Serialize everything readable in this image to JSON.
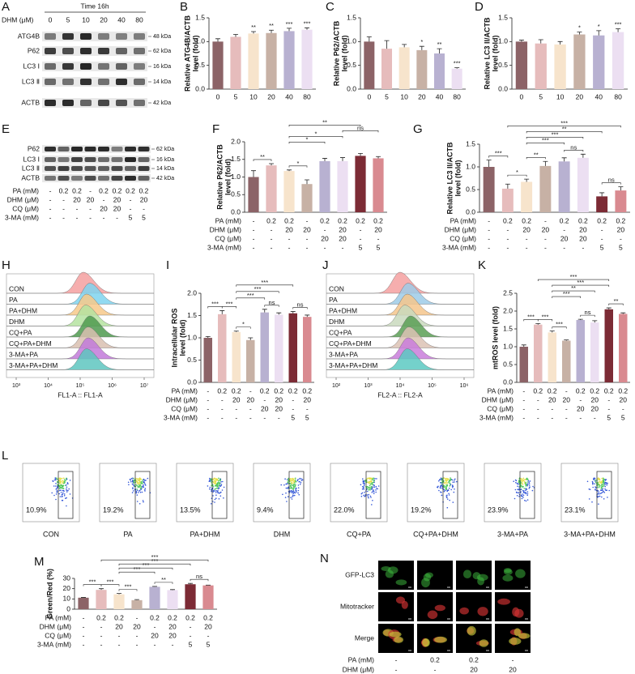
{
  "treatments": {
    "rows": [
      {
        "label": "PA (mM)",
        "values": [
          "-",
          "0.2",
          "0.2",
          "-",
          "0.2",
          "0.2",
          "0.2",
          "0.2"
        ]
      },
      {
        "label": "DHM (μM)",
        "values": [
          "-",
          "-",
          "20",
          "20",
          "-",
          "20",
          "-",
          "20"
        ]
      },
      {
        "label": "CQ (μM)",
        "values": [
          "-",
          "-",
          "-",
          "-",
          "20",
          "20",
          "-",
          "-"
        ]
      },
      {
        "label": "3-MA (mM)",
        "values": [
          "-",
          "-",
          "-",
          "-",
          "-",
          "-",
          "5",
          "5"
        ]
      }
    ]
  },
  "blot_a": {
    "panel": "A",
    "title": "Time 16h",
    "dose_label": "DHM (μM)",
    "doses": [
      "0",
      "5",
      "10",
      "20",
      "40",
      "80"
    ],
    "rows": [
      {
        "label": "ATG4B",
        "size": "48 kDa"
      },
      {
        "label": "P62",
        "size": "62 kDa"
      },
      {
        "label": "LC3 Ⅰ",
        "size": "16 kDa"
      },
      {
        "label": "LC3 Ⅱ",
        "size": "14 kDa"
      },
      {
        "label": "ACTB",
        "size": "42 kDa"
      }
    ]
  },
  "blot_e": {
    "panel": "E",
    "rows": [
      {
        "label": "P62",
        "size": "62 kDa"
      },
      {
        "label": "LC3 Ⅰ",
        "size": "16 kDa"
      },
      {
        "label": "LC3 Ⅱ",
        "size": "14 kDa"
      },
      {
        "label": "ACTB",
        "size": "42 kDa"
      }
    ]
  },
  "flow_h": {
    "panel": "H",
    "xlabel": "FL1-A :: FL1-A",
    "xtick_labels": [
      "10³",
      "10⁴",
      "10⁵",
      "10⁶",
      "10⁷"
    ],
    "samples": [
      {
        "label": "CON",
        "color": "#f4a0a0"
      },
      {
        "label": "PA",
        "color": "#7fd3ee"
      },
      {
        "label": "PA+DHM",
        "color": "#f7c98a"
      },
      {
        "label": "DHM",
        "color": "#b5e3a0"
      },
      {
        "label": "CQ+PA",
        "color": "#4f9a4f"
      },
      {
        "label": "CQ+PA+DHM",
        "color": "#d9c0b0"
      },
      {
        "label": "3-MA+PA",
        "color": "#c27ad9"
      },
      {
        "label": "3-MA+PA+DHM",
        "color": "#5ec6c0"
      }
    ]
  },
  "flow_j": {
    "panel": "J",
    "xlabel": "FL2-A :: FL2-A",
    "xtick_labels": [
      "10²",
      "10³",
      "10⁴",
      "10⁵",
      "10⁶"
    ],
    "samples": [
      {
        "label": "CON",
        "color": "#f4a0a0"
      },
      {
        "label": "PA",
        "color": "#9ecbe8"
      },
      {
        "label": "PA+DHM",
        "color": "#f5c58c"
      },
      {
        "label": "DHM",
        "color": "#c9d9bd"
      },
      {
        "label": "CQ+PA",
        "color": "#5a9f55"
      },
      {
        "label": "CQ+PA+DHM",
        "color": "#dcc2b4"
      },
      {
        "label": "3-MA+PA",
        "color": "#c97ddb"
      },
      {
        "label": "3-MA+PA+DHM",
        "color": "#5cc9c2"
      }
    ]
  },
  "scatter_l": {
    "panel": "L",
    "plots": [
      {
        "label": "CON",
        "percent": "10.9%"
      },
      {
        "label": "PA",
        "percent": "19.2%"
      },
      {
        "label": "PA+DHM",
        "percent": "13.5%"
      },
      {
        "label": "DHM",
        "percent": "9.4%"
      },
      {
        "label": "CQ+PA",
        "percent": "22.0%"
      },
      {
        "label": "CQ+PA+DHM",
        "percent": "19.2%"
      },
      {
        "label": "3-MA+PA",
        "percent": "23.9%"
      },
      {
        "label": "3-MA+PA+DHM",
        "percent": "23.1%"
      }
    ]
  },
  "images_n": {
    "panel": "N",
    "channels": [
      "GFP-LC3",
      "Mitotracker",
      "Merge"
    ],
    "rows": [
      {
        "label": "PA (mM)",
        "values": [
          "-",
          "0.2",
          "0.2",
          "-"
        ]
      },
      {
        "label": "DHM (μM)",
        "values": [
          "-",
          "-",
          "20",
          "20"
        ]
      }
    ]
  },
  "chart_data": [
    {
      "type": "bar",
      "panel": "B",
      "ylabel": [
        "Relative ATG4B/ACTB",
        "level (fold)"
      ],
      "categories": [
        "0",
        "5",
        "10",
        "20",
        "40",
        "80"
      ],
      "values": [
        1.0,
        1.1,
        1.17,
        1.18,
        1.22,
        1.25
      ],
      "error": [
        0.06,
        0.05,
        0.04,
        0.06,
        0.06,
        0.04
      ],
      "labels": [
        null,
        null,
        "**",
        "**",
        "***",
        "***"
      ],
      "colors": [
        "#8c6367",
        "#e6bcbc",
        "#f7e4cc",
        "#c7b1a5",
        "#b8b1d1",
        "#ecdff2"
      ],
      "ylim": [
        0,
        1.5
      ],
      "yticks": [
        {
          "value": 0,
          "label": "0.0"
        },
        0.5,
        {
          "value": 1,
          "label": "1.0"
        },
        1.5
      ]
    },
    {
      "type": "bar",
      "panel": "C",
      "ylabel": [
        "Relative P62/ACTB",
        "level (fold)"
      ],
      "categories": [
        "0",
        "5",
        "10",
        "20",
        "40",
        "80"
      ],
      "values": [
        1.0,
        0.85,
        0.88,
        0.82,
        0.75,
        0.43
      ],
      "error": [
        0.1,
        0.17,
        0.06,
        0.08,
        0.1,
        0.02
      ],
      "labels": [
        null,
        null,
        null,
        "*",
        "**",
        "***"
      ],
      "colors": [
        "#8c6367",
        "#e6bcbc",
        "#f7e4cc",
        "#c7b1a5",
        "#b8b1d1",
        "#ecdff2"
      ],
      "ylim": [
        0,
        1.5
      ],
      "yticks": [
        {
          "value": 0,
          "label": "0.0"
        },
        0.5,
        {
          "value": 1,
          "label": "1.0"
        },
        1.5
      ]
    },
    {
      "type": "bar",
      "panel": "D",
      "ylabel": [
        "Relative LC3 II/ACTB",
        "level (fold)"
      ],
      "categories": [
        "0",
        "5",
        "10",
        "20",
        "40",
        "80"
      ],
      "values": [
        1.0,
        0.96,
        0.94,
        1.15,
        1.13,
        1.2
      ],
      "error": [
        0.03,
        0.08,
        0.06,
        0.05,
        0.1,
        0.07
      ],
      "labels": [
        null,
        null,
        null,
        "*",
        "*",
        "***"
      ],
      "colors": [
        "#8c6367",
        "#e6bcbc",
        "#f7e4cc",
        "#c7b1a5",
        "#b8b1d1",
        "#ecdff2"
      ],
      "ylim": [
        0,
        1.5
      ],
      "yticks": [
        {
          "value": 0,
          "label": "0.0"
        },
        0.5,
        {
          "value": 1,
          "label": "1.0"
        },
        1.5
      ]
    },
    {
      "type": "bar",
      "panel": "F",
      "ylabel": [
        "Relative P62/ACTB",
        "level (fold)"
      ],
      "values": [
        1.0,
        1.33,
        1.17,
        0.8,
        1.45,
        1.45,
        1.6,
        1.53
      ],
      "error": [
        0.18,
        0.05,
        0.03,
        0.12,
        0.08,
        0.1,
        0.07,
        0.05
      ],
      "colors": [
        "#8c6367",
        "#e6bcbc",
        "#f7e4cc",
        "#c7b1a5",
        "#b8b1d1",
        "#ecdff2",
        "#7c2b35",
        "#d98a90"
      ],
      "ylim": [
        0,
        2
      ],
      "yticks": [
        {
          "value": 0,
          "label": "0.0"
        },
        0.5,
        {
          "value": 1,
          "label": "1.0"
        },
        1.5,
        {
          "value": 2,
          "label": "2.0"
        }
      ],
      "brackets": [
        {
          "pair": [
            0,
            1
          ],
          "label": "**"
        },
        {
          "pair": [
            2,
            3
          ],
          "label": "*"
        },
        {
          "pair": [
            2,
            4
          ],
          "label": "*"
        },
        {
          "pair": [
            2,
            5
          ],
          "label": "*"
        },
        {
          "pair": [
            5,
            7
          ],
          "label": "ns"
        },
        {
          "pair": [
            2,
            6
          ],
          "label": "**"
        }
      ]
    },
    {
      "type": "bar",
      "panel": "G",
      "ylabel": [
        "Relative LC3 II/ACTB",
        "level (fold)"
      ],
      "values": [
        1.0,
        0.52,
        0.67,
        1.02,
        1.12,
        1.2,
        0.35,
        0.48
      ],
      "error": [
        0.15,
        0.1,
        0.06,
        0.1,
        0.08,
        0.08,
        0.08,
        0.08
      ],
      "colors": [
        "#8c6367",
        "#e6bcbc",
        "#f7e4cc",
        "#c7b1a5",
        "#b8b1d1",
        "#ecdff2",
        "#7c2b35",
        "#d98a90"
      ],
      "ylim": [
        0,
        1.5
      ],
      "yticks": [
        {
          "value": 0,
          "label": "0.0"
        },
        0.5,
        {
          "value": 1,
          "label": "1.0"
        },
        1.5
      ],
      "brackets": [
        {
          "pair": [
            0,
            1
          ],
          "label": "***"
        },
        {
          "pair": [
            1,
            2
          ],
          "label": "*"
        },
        {
          "pair": [
            2,
            3
          ],
          "label": "**"
        },
        {
          "pair": [
            4,
            5
          ],
          "label": "ns"
        },
        {
          "pair": [
            6,
            7
          ],
          "label": "ns"
        },
        {
          "pair": [
            2,
            4
          ],
          "label": "***"
        },
        {
          "pair": [
            2,
            5
          ],
          "label": "***"
        },
        {
          "pair": [
            2,
            6
          ],
          "label": "**"
        },
        {
          "pair": [
            1,
            7
          ],
          "label": "***"
        }
      ]
    },
    {
      "type": "bar",
      "panel": "I",
      "ylabel": [
        "Intracellular ROS",
        "level (fold)"
      ],
      "values": [
        1.0,
        1.53,
        1.13,
        0.95,
        1.57,
        1.52,
        1.55,
        1.47
      ],
      "error": [
        0.03,
        0.08,
        0.02,
        0.05,
        0.07,
        0.04,
        0.04,
        0.04
      ],
      "colors": [
        "#8c6367",
        "#e6bcbc",
        "#f7e4cc",
        "#c7b1a5",
        "#b8b1d1",
        "#ecdff2",
        "#7c2b35",
        "#d98a90"
      ],
      "ylim": [
        0,
        2
      ],
      "yticks": [
        {
          "value": 0,
          "label": "0.0"
        },
        0.5,
        {
          "value": 1,
          "label": "1.0"
        },
        1.5,
        {
          "value": 2,
          "label": "2.0"
        }
      ],
      "brackets": [
        {
          "pair": [
            0,
            1
          ],
          "label": "***"
        },
        {
          "pair": [
            1,
            2
          ],
          "label": "***"
        },
        {
          "pair": [
            2,
            3
          ],
          "label": "*"
        },
        {
          "pair": [
            4,
            5
          ],
          "label": "ns"
        },
        {
          "pair": [
            6,
            7
          ],
          "label": "ns"
        },
        {
          "pair": [
            2,
            4
          ],
          "label": "***"
        },
        {
          "pair": [
            2,
            5
          ],
          "label": "***"
        },
        {
          "pair": [
            2,
            6
          ],
          "label": "***"
        }
      ]
    },
    {
      "type": "bar",
      "panel": "K",
      "ylabel": [
        "mtROS level (fold)"
      ],
      "values": [
        1.0,
        1.62,
        1.4,
        1.17,
        1.75,
        1.68,
        2.05,
        1.92
      ],
      "error": [
        0.05,
        0.03,
        0.04,
        0.02,
        0.02,
        0.05,
        0.04,
        0.03
      ],
      "colors": [
        "#8c6367",
        "#e6bcbc",
        "#f7e4cc",
        "#c7b1a5",
        "#b8b1d1",
        "#ecdff2",
        "#7c2b35",
        "#d98a90"
      ],
      "ylim": [
        0,
        2.5
      ],
      "yticks": [
        {
          "value": 0,
          "label": "0.0"
        },
        0.5,
        {
          "value": 1,
          "label": "1.0"
        },
        1.5,
        {
          "value": 2,
          "label": "2.0"
        },
        2.5
      ],
      "brackets": [
        {
          "pair": [
            0,
            1
          ],
          "label": "***"
        },
        {
          "pair": [
            1,
            2
          ],
          "label": "***"
        },
        {
          "pair": [
            2,
            3
          ],
          "label": "***"
        },
        {
          "pair": [
            4,
            5
          ],
          "label": "ns"
        },
        {
          "pair": [
            6,
            7
          ],
          "label": "**"
        },
        {
          "pair": [
            2,
            4
          ],
          "label": "***"
        },
        {
          "pair": [
            2,
            5
          ],
          "label": "**"
        },
        {
          "pair": [
            2,
            6
          ],
          "label": "***"
        },
        {
          "pair": [
            1,
            6
          ],
          "label": "***"
        }
      ]
    },
    {
      "type": "bar",
      "panel": "M",
      "ylabel": [
        "Green/Red (%)"
      ],
      "values": [
        11.2,
        18.8,
        14.5,
        8.8,
        21.8,
        18.6,
        24.3,
        23.2
      ],
      "error": [
        0.3,
        1.2,
        0.8,
        0.6,
        0.4,
        0.5,
        0.8,
        0.3
      ],
      "colors": [
        "#8c6367",
        "#e6bcbc",
        "#f7e4cc",
        "#c7b1a5",
        "#b8b1d1",
        "#ecdff2",
        "#7c2b35",
        "#d98a90"
      ],
      "ylim": [
        0,
        30
      ],
      "yticks": [
        0,
        10,
        20,
        30
      ],
      "brackets": [
        {
          "pair": [
            0,
            1
          ],
          "label": "***"
        },
        {
          "pair": [
            1,
            2
          ],
          "label": "***"
        },
        {
          "pair": [
            2,
            3
          ],
          "label": "***"
        },
        {
          "pair": [
            4,
            5
          ],
          "label": "**"
        },
        {
          "pair": [
            6,
            7
          ],
          "label": "ns"
        },
        {
          "pair": [
            2,
            4
          ],
          "label": "***"
        },
        {
          "pair": [
            2,
            5
          ],
          "label": "***"
        },
        {
          "pair": [
            2,
            6
          ],
          "label": "***"
        },
        {
          "pair": [
            1,
            7
          ],
          "label": "***"
        }
      ]
    }
  ]
}
